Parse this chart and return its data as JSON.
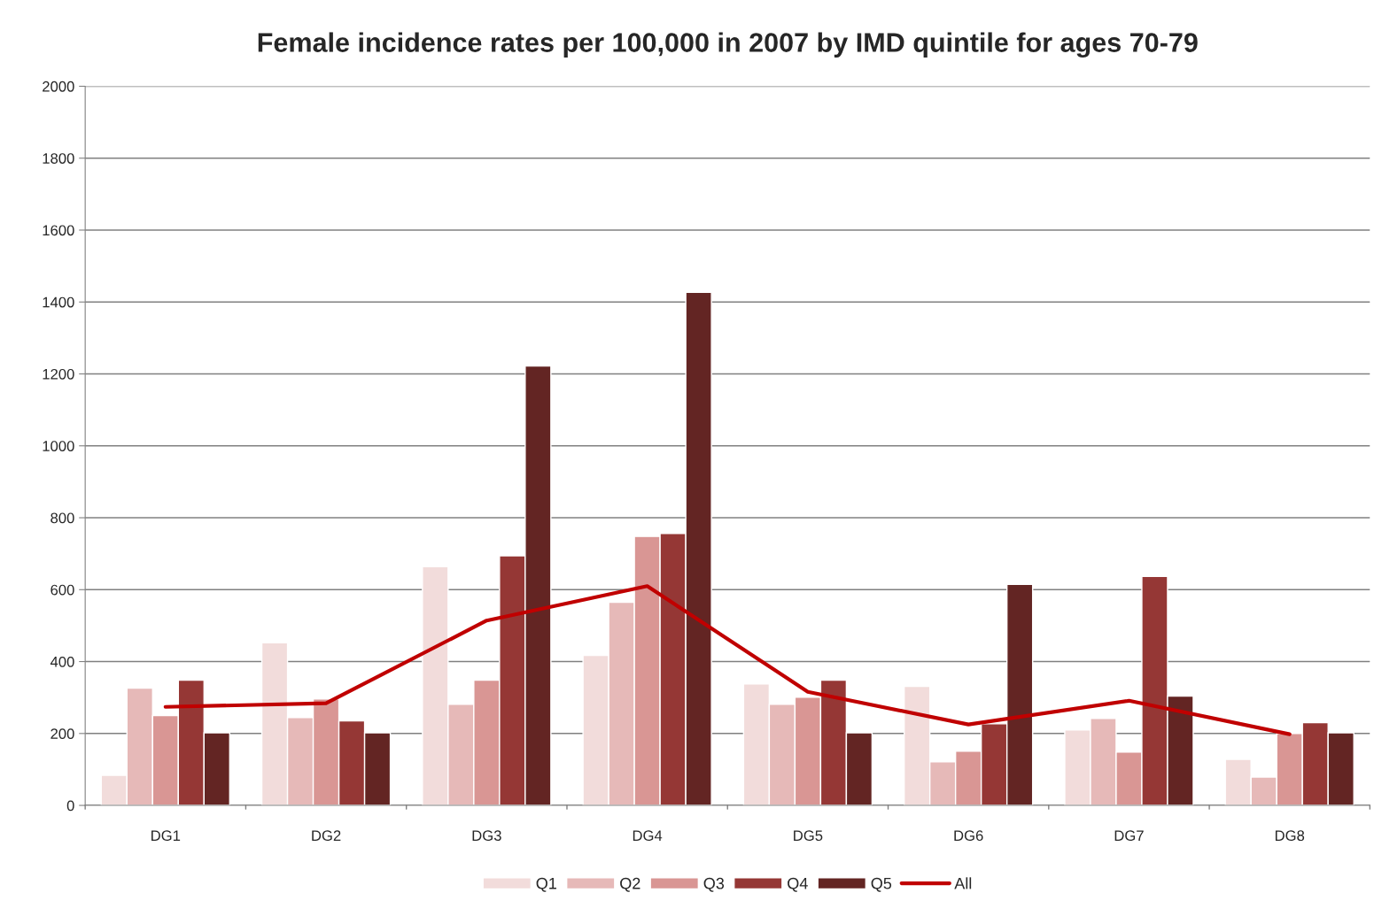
{
  "chart_data": {
    "type": "bar",
    "title": "Female incidence rates per 100,000 in 2007 by IMD quintile for ages 70-79",
    "categories": [
      "DG1",
      "DG2",
      "DG3",
      "DG4",
      "DG5",
      "DG6",
      "DG7",
      "DG8"
    ],
    "series": [
      {
        "name": "Q1",
        "color": "#f2dcdb",
        "values": [
          84,
          452,
          664,
          417,
          338,
          331,
          210,
          128
        ]
      },
      {
        "name": "Q2",
        "color": "#e6b9b8",
        "values": [
          326,
          244,
          281,
          565,
          281,
          121,
          242,
          79
        ]
      },
      {
        "name": "Q3",
        "color": "#d99694",
        "values": [
          250,
          296,
          348,
          748,
          301,
          151,
          148,
          200
        ]
      },
      {
        "name": "Q4",
        "color": "#953735",
        "values": [
          348,
          235,
          694,
          756,
          348,
          227,
          637,
          230
        ]
      },
      {
        "name": "Q5",
        "color": "#632523",
        "values": [
          202,
          202,
          1222,
          1427,
          202,
          615,
          304,
          202
        ]
      },
      {
        "name": "All",
        "color": "#c00000",
        "type": "line",
        "values": [
          274,
          284,
          514,
          610,
          316,
          225,
          291,
          198
        ]
      }
    ],
    "ylim": [
      0,
      2000
    ],
    "yticks": [
      0,
      200,
      400,
      600,
      800,
      1000,
      1200,
      1400,
      1600,
      1800,
      2000
    ],
    "grid": "y",
    "legend": "bottom"
  }
}
